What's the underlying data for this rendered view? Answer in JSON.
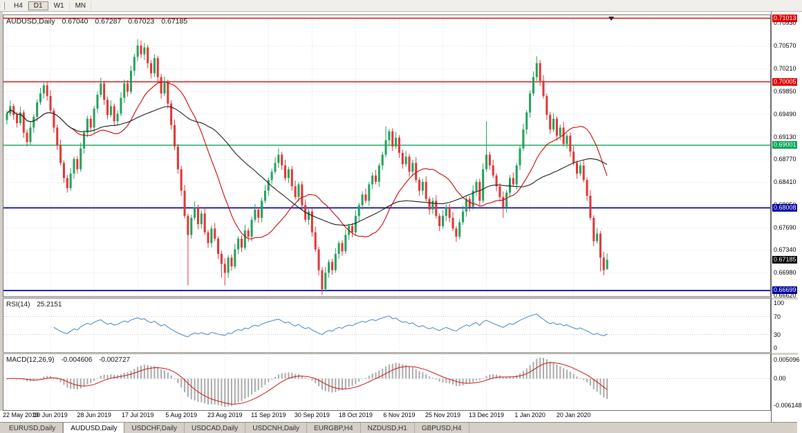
{
  "window_title": "AUDUSD,Daily",
  "toolbar": {
    "periods": [
      "H4",
      "D1",
      "W1",
      "MN"
    ],
    "active": "D1"
  },
  "chart": {
    "symbol_title": "AUDUSD,Daily",
    "ohlc": {
      "open": "0.67040",
      "high": "0.67287",
      "low": "0.67023",
      "close": "0.67185"
    },
    "price_axis_labels": [
      "0.70930",
      "0.70570",
      "0.70210",
      "0.69850",
      "0.69490",
      "0.69130",
      "0.68770",
      "0.68410",
      "0.68050",
      "0.67690",
      "0.67340",
      "0.66980",
      "0.66620"
    ],
    "badges": [
      {
        "label": "0.71013",
        "value": 0.71013,
        "color": "#dd0000"
      },
      {
        "label": "0.70005",
        "value": 0.70005,
        "color": "#dd0000"
      },
      {
        "label": "0.69001",
        "value": 0.69001,
        "color": "#00a651"
      },
      {
        "label": "0.68008",
        "value": 0.68008,
        "color": "#0000a0"
      },
      {
        "label": "0.67185",
        "value": 0.67185,
        "color": "#000000"
      },
      {
        "label": "0.66699",
        "value": 0.66699,
        "color": "#0000a0"
      }
    ],
    "hlines": [
      {
        "value": 0.71013,
        "color": "#dd0000",
        "width": 1.4
      },
      {
        "value": 0.70005,
        "color": "#dd0000",
        "width": 1.4
      },
      {
        "value": 0.69001,
        "color": "#00a651",
        "width": 1.4
      },
      {
        "value": 0.68008,
        "color": "#0000a0",
        "width": 1.8
      },
      {
        "value": 0.66699,
        "color": "#0000a0",
        "width": 1.8
      }
    ]
  },
  "chart_data": {
    "type": "candlestick",
    "title": "AUDUSD Daily",
    "ylim": [
      0.666,
      0.7106
    ],
    "x_tick_labels": [
      "22 May 2019",
      "10 Jun 2019",
      "28 Jun 2019",
      "17 Jul 2019",
      "5 Aug 2019",
      "23 Aug 2019",
      "11 Sep 2019",
      "30 Sep 2019",
      "18 Oct 2019",
      "6 Nov 2019",
      "25 Nov 2019",
      "13 Dec 2019",
      "1 Jan 2020",
      "20 Jan 2020"
    ],
    "x_tick_bar_indices": [
      0,
      13,
      26,
      39,
      52,
      65,
      78,
      91,
      104,
      117,
      130,
      143,
      156,
      169
    ],
    "up_color": "#1fa05a",
    "down_color": "#e03232",
    "overlays": [
      {
        "name": "sma-fast",
        "period": 20,
        "color": "#cc0000"
      },
      {
        "name": "sma-slow",
        "period": 40,
        "color": "#1a1a1a"
      }
    ],
    "candles": [
      [
        0.694,
        0.6955,
        0.6933,
        0.695
      ],
      [
        0.695,
        0.6971,
        0.6946,
        0.6962
      ],
      [
        0.6962,
        0.6966,
        0.694,
        0.6948
      ],
      [
        0.6948,
        0.6953,
        0.6928,
        0.6935
      ],
      [
        0.6935,
        0.6961,
        0.6931,
        0.6952
      ],
      [
        0.6952,
        0.6956,
        0.6912,
        0.692
      ],
      [
        0.692,
        0.6925,
        0.6898,
        0.6905
      ],
      [
        0.6905,
        0.6937,
        0.6901,
        0.6928
      ],
      [
        0.6928,
        0.6949,
        0.692,
        0.6945
      ],
      [
        0.6945,
        0.6973,
        0.6938,
        0.6968
      ],
      [
        0.6968,
        0.6991,
        0.6964,
        0.6982
      ],
      [
        0.6982,
        0.6999,
        0.6974,
        0.6995
      ],
      [
        0.6995,
        0.7,
        0.6971,
        0.6978
      ],
      [
        0.6978,
        0.6987,
        0.6951,
        0.6955
      ],
      [
        0.6955,
        0.6959,
        0.692,
        0.6928
      ],
      [
        0.6928,
        0.6933,
        0.6893,
        0.69
      ],
      [
        0.69,
        0.6909,
        0.6868,
        0.6872
      ],
      [
        0.6872,
        0.6876,
        0.684,
        0.6848
      ],
      [
        0.6848,
        0.6853,
        0.6825,
        0.6832
      ],
      [
        0.6832,
        0.6864,
        0.6828,
        0.6855
      ],
      [
        0.6855,
        0.6882,
        0.6847,
        0.6878
      ],
      [
        0.6878,
        0.6883,
        0.6855,
        0.6862
      ],
      [
        0.6862,
        0.6904,
        0.6858,
        0.6895
      ],
      [
        0.6895,
        0.6924,
        0.6887,
        0.692
      ],
      [
        0.692,
        0.6947,
        0.6913,
        0.6942
      ],
      [
        0.6942,
        0.6947,
        0.6921,
        0.6928
      ],
      [
        0.6928,
        0.6962,
        0.692,
        0.6958
      ],
      [
        0.6958,
        0.6985,
        0.6951,
        0.698
      ],
      [
        0.698,
        0.7007,
        0.6976,
        0.6998
      ],
      [
        0.6998,
        0.7002,
        0.6964,
        0.6972
      ],
      [
        0.6972,
        0.6977,
        0.6941,
        0.6948
      ],
      [
        0.6948,
        0.6971,
        0.6944,
        0.6962
      ],
      [
        0.6962,
        0.6966,
        0.693,
        0.6938
      ],
      [
        0.6938,
        0.6955,
        0.6931,
        0.695
      ],
      [
        0.695,
        0.6984,
        0.6946,
        0.6975
      ],
      [
        0.6975,
        0.7004,
        0.6967,
        0.6998
      ],
      [
        0.6998,
        0.7003,
        0.6977,
        0.6985
      ],
      [
        0.6985,
        0.7026,
        0.6981,
        0.7018
      ],
      [
        0.7018,
        0.7045,
        0.701,
        0.704
      ],
      [
        0.704,
        0.7068,
        0.7033,
        0.7058
      ],
      [
        0.7058,
        0.7066,
        0.7038,
        0.7044
      ],
      [
        0.7044,
        0.7062,
        0.7035,
        0.7055
      ],
      [
        0.7055,
        0.7059,
        0.7022,
        0.703
      ],
      [
        0.703,
        0.7035,
        0.7006,
        0.7014
      ],
      [
        0.7014,
        0.7044,
        0.7008,
        0.7038
      ],
      [
        0.7038,
        0.7042,
        0.6999,
        0.7008
      ],
      [
        0.7008,
        0.7013,
        0.6974,
        0.6982
      ],
      [
        0.6982,
        0.7009,
        0.6978,
        0.7
      ],
      [
        0.7,
        0.7004,
        0.6958,
        0.6966
      ],
      [
        0.6966,
        0.6971,
        0.6925,
        0.6932
      ],
      [
        0.6932,
        0.6941,
        0.6892,
        0.6898
      ],
      [
        0.6898,
        0.6902,
        0.6855,
        0.6862
      ],
      [
        0.6862,
        0.6867,
        0.682,
        0.6828
      ],
      [
        0.6828,
        0.6837,
        0.6784,
        0.6788
      ],
      [
        0.6788,
        0.6792,
        0.6678,
        0.6758
      ],
      [
        0.6758,
        0.679,
        0.6752,
        0.6785
      ],
      [
        0.6785,
        0.6811,
        0.6781,
        0.6802
      ],
      [
        0.6802,
        0.6806,
        0.6767,
        0.6775
      ],
      [
        0.6775,
        0.6797,
        0.6768,
        0.6792
      ],
      [
        0.6792,
        0.6801,
        0.6758,
        0.6762
      ],
      [
        0.6762,
        0.6766,
        0.6737,
        0.6745
      ],
      [
        0.6745,
        0.6773,
        0.6738,
        0.6768
      ],
      [
        0.6768,
        0.6777,
        0.6748,
        0.6752
      ],
      [
        0.6752,
        0.6756,
        0.672,
        0.6728
      ],
      [
        0.6728,
        0.6733,
        0.669,
        0.6712
      ],
      [
        0.6712,
        0.6721,
        0.6678,
        0.6698
      ],
      [
        0.6698,
        0.6726,
        0.669,
        0.6722
      ],
      [
        0.6722,
        0.6727,
        0.6701,
        0.6708
      ],
      [
        0.6708,
        0.6744,
        0.6704,
        0.6735
      ],
      [
        0.6735,
        0.6756,
        0.6727,
        0.6752
      ],
      [
        0.6752,
        0.6757,
        0.6731,
        0.6738
      ],
      [
        0.6738,
        0.6774,
        0.6734,
        0.6765
      ],
      [
        0.6765,
        0.6769,
        0.6747,
        0.6755
      ],
      [
        0.6755,
        0.6787,
        0.6748,
        0.6782
      ],
      [
        0.6782,
        0.6807,
        0.6778,
        0.6798
      ],
      [
        0.6798,
        0.6802,
        0.6777,
        0.6785
      ],
      [
        0.6785,
        0.6817,
        0.6778,
        0.6812
      ],
      [
        0.6812,
        0.6837,
        0.6808,
        0.6828
      ],
      [
        0.6828,
        0.6849,
        0.682,
        0.6845
      ],
      [
        0.6845,
        0.6863,
        0.6838,
        0.6858
      ],
      [
        0.6858,
        0.6881,
        0.6854,
        0.6872
      ],
      [
        0.6872,
        0.6895,
        0.6864,
        0.6885
      ],
      [
        0.6885,
        0.689,
        0.6861,
        0.6868
      ],
      [
        0.6868,
        0.6877,
        0.6844,
        0.6848
      ],
      [
        0.6848,
        0.6866,
        0.684,
        0.6862
      ],
      [
        0.6862,
        0.6867,
        0.6828,
        0.6835
      ],
      [
        0.6835,
        0.6844,
        0.6814,
        0.6818
      ],
      [
        0.6818,
        0.6842,
        0.681,
        0.6838
      ],
      [
        0.6838,
        0.6843,
        0.6798,
        0.6805
      ],
      [
        0.6805,
        0.6814,
        0.6778,
        0.6782
      ],
      [
        0.6782,
        0.6799,
        0.6774,
        0.6795
      ],
      [
        0.6795,
        0.68,
        0.6755,
        0.6762
      ],
      [
        0.6762,
        0.6771,
        0.6731,
        0.6735
      ],
      [
        0.6735,
        0.6739,
        0.6694,
        0.6702
      ],
      [
        0.6702,
        0.6707,
        0.6663,
        0.6672
      ],
      [
        0.6672,
        0.6707,
        0.6668,
        0.6698
      ],
      [
        0.6698,
        0.6719,
        0.669,
        0.6715
      ],
      [
        0.6715,
        0.672,
        0.6695,
        0.6702
      ],
      [
        0.6702,
        0.6737,
        0.6698,
        0.6728
      ],
      [
        0.6728,
        0.6749,
        0.672,
        0.6745
      ],
      [
        0.6745,
        0.675,
        0.6725,
        0.6732
      ],
      [
        0.6732,
        0.6767,
        0.6728,
        0.6758
      ],
      [
        0.6758,
        0.6776,
        0.675,
        0.6772
      ],
      [
        0.6772,
        0.6777,
        0.6754,
        0.6762
      ],
      [
        0.6762,
        0.6797,
        0.6758,
        0.6788
      ],
      [
        0.6788,
        0.6809,
        0.678,
        0.6805
      ],
      [
        0.6805,
        0.6827,
        0.6798,
        0.6822
      ],
      [
        0.6822,
        0.6831,
        0.6808,
        0.6812
      ],
      [
        0.6812,
        0.6842,
        0.6804,
        0.6838
      ],
      [
        0.6838,
        0.6857,
        0.6831,
        0.6852
      ],
      [
        0.6852,
        0.6861,
        0.6838,
        0.6842
      ],
      [
        0.6842,
        0.6872,
        0.6834,
        0.6868
      ],
      [
        0.6868,
        0.689,
        0.6861,
        0.6885
      ],
      [
        0.6885,
        0.693,
        0.6881,
        0.6908
      ],
      [
        0.6908,
        0.6926,
        0.69,
        0.6922
      ],
      [
        0.6922,
        0.6927,
        0.6891,
        0.6898
      ],
      [
        0.6898,
        0.6921,
        0.6894,
        0.6912
      ],
      [
        0.6912,
        0.6916,
        0.688,
        0.6888
      ],
      [
        0.6888,
        0.6893,
        0.6863,
        0.687
      ],
      [
        0.687,
        0.6891,
        0.6866,
        0.6882
      ],
      [
        0.6882,
        0.6886,
        0.685,
        0.6858
      ],
      [
        0.6858,
        0.6877,
        0.6851,
        0.6872
      ],
      [
        0.6872,
        0.6881,
        0.6841,
        0.6845
      ],
      [
        0.6845,
        0.6849,
        0.682,
        0.6828
      ],
      [
        0.6828,
        0.6847,
        0.6821,
        0.6842
      ],
      [
        0.6842,
        0.6851,
        0.6811,
        0.6815
      ],
      [
        0.6815,
        0.6819,
        0.679,
        0.6798
      ],
      [
        0.6798,
        0.6817,
        0.6791,
        0.6812
      ],
      [
        0.6812,
        0.6821,
        0.6784,
        0.6788
      ],
      [
        0.6788,
        0.6792,
        0.6764,
        0.6772
      ],
      [
        0.6772,
        0.6797,
        0.6768,
        0.6788
      ],
      [
        0.6788,
        0.6806,
        0.678,
        0.6802
      ],
      [
        0.6802,
        0.6807,
        0.6778,
        0.6785
      ],
      [
        0.6785,
        0.6794,
        0.6764,
        0.6768
      ],
      [
        0.6768,
        0.6772,
        0.6747,
        0.6755
      ],
      [
        0.6755,
        0.6783,
        0.6751,
        0.6778
      ],
      [
        0.6778,
        0.6804,
        0.6774,
        0.6795
      ],
      [
        0.6795,
        0.6819,
        0.6787,
        0.6815
      ],
      [
        0.6815,
        0.682,
        0.6795,
        0.6802
      ],
      [
        0.6802,
        0.6837,
        0.6798,
        0.6828
      ],
      [
        0.6828,
        0.6846,
        0.682,
        0.6842
      ],
      [
        0.6842,
        0.6847,
        0.6805,
        0.6812
      ],
      [
        0.6812,
        0.6871,
        0.6808,
        0.6862
      ],
      [
        0.6862,
        0.6938,
        0.6858,
        0.6885
      ],
      [
        0.6885,
        0.689,
        0.6861,
        0.6868
      ],
      [
        0.6868,
        0.6877,
        0.6848,
        0.6852
      ],
      [
        0.6852,
        0.6856,
        0.6827,
        0.6835
      ],
      [
        0.6835,
        0.684,
        0.6811,
        0.6818
      ],
      [
        0.6818,
        0.6827,
        0.6785,
        0.6802
      ],
      [
        0.6802,
        0.6829,
        0.6794,
        0.6825
      ],
      [
        0.6825,
        0.6853,
        0.6818,
        0.6848
      ],
      [
        0.6848,
        0.6857,
        0.6834,
        0.6838
      ],
      [
        0.6838,
        0.6872,
        0.683,
        0.6868
      ],
      [
        0.6868,
        0.69,
        0.6861,
        0.6895
      ],
      [
        0.6895,
        0.6934,
        0.6891,
        0.6925
      ],
      [
        0.6925,
        0.6956,
        0.6917,
        0.6952
      ],
      [
        0.6952,
        0.6987,
        0.6944,
        0.6982
      ],
      [
        0.6982,
        0.7017,
        0.6978,
        0.7008
      ],
      [
        0.7008,
        0.7041,
        0.7002,
        0.703
      ],
      [
        0.703,
        0.7035,
        0.6994,
        0.7002
      ],
      [
        0.7002,
        0.7011,
        0.6974,
        0.6978
      ],
      [
        0.6978,
        0.6982,
        0.694,
        0.6948
      ],
      [
        0.6948,
        0.6953,
        0.6918,
        0.6925
      ],
      [
        0.6925,
        0.6951,
        0.6921,
        0.6942
      ],
      [
        0.6942,
        0.6946,
        0.6907,
        0.6915
      ],
      [
        0.6915,
        0.6933,
        0.6908,
        0.6928
      ],
      [
        0.6928,
        0.6937,
        0.6898,
        0.6902
      ],
      [
        0.6902,
        0.6919,
        0.6895,
        0.6915
      ],
      [
        0.6915,
        0.692,
        0.6882,
        0.689
      ],
      [
        0.689,
        0.6899,
        0.6868,
        0.6872
      ],
      [
        0.6872,
        0.6876,
        0.6847,
        0.6855
      ],
      [
        0.6855,
        0.6873,
        0.6851,
        0.6868
      ],
      [
        0.6868,
        0.6877,
        0.6841,
        0.6845
      ],
      [
        0.6845,
        0.6849,
        0.6812,
        0.682
      ],
      [
        0.682,
        0.6829,
        0.6781,
        0.6785
      ],
      [
        0.6785,
        0.6789,
        0.674,
        0.6748
      ],
      [
        0.6748,
        0.6769,
        0.6744,
        0.676
      ],
      [
        0.676,
        0.6764,
        0.67,
        0.6722
      ],
      [
        0.6722,
        0.6731,
        0.6694,
        0.6702
      ],
      [
        0.6704,
        0.67287,
        0.67023,
        0.67185
      ]
    ]
  },
  "rsi_pane": {
    "name": "RSI(14)",
    "value": "25.2151",
    "period": 14,
    "line_color": "#3f82c4",
    "levels": [
      70,
      30
    ],
    "scale_labels": [
      "100",
      "70",
      "30",
      "0"
    ]
  },
  "macd_pane": {
    "name": "MACD(12,26,9)",
    "main_value": "-0.004606",
    "signal_value": "-0.002727",
    "params": [
      12,
      26,
      9
    ],
    "hist_color": "#a8a8a8",
    "signal_color": "#cc1111",
    "scale_labels": [
      "0.005096",
      "0.00",
      "-0.006148"
    ]
  },
  "bottom_tabs": {
    "items": [
      "EURUSD,Daily",
      "AUDUSD,Daily",
      "USDCHF,Daily",
      "USDCAD,Daily",
      "USDCNH,Daily",
      "EURGBP,H4",
      "NZDUSD,H1",
      "GBPUSD,H4"
    ],
    "active_index": 1
  }
}
